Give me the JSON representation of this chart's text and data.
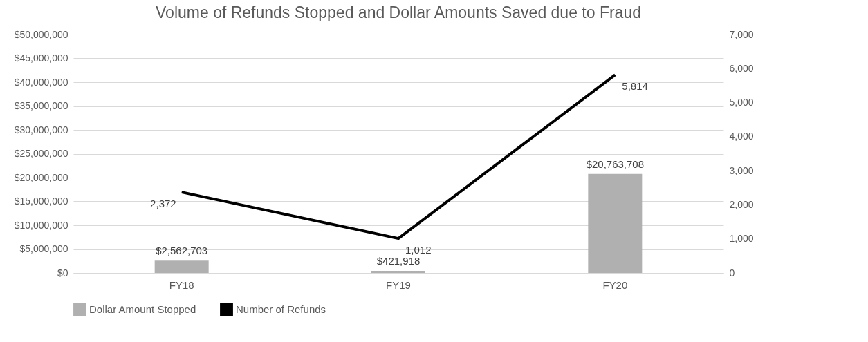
{
  "chart_data": {
    "type": "bar",
    "title": "Volume of Refunds Stopped and Dollar Amounts Saved due to Fraud",
    "categories": [
      "FY18",
      "FY19",
      "FY20"
    ],
    "series": [
      {
        "name": "Dollar Amount Stopped",
        "color": "#b0b0b0",
        "values": [
          2562703,
          421918,
          20763708
        ],
        "value_labels": [
          "$2,562,703",
          "$421,918",
          "$20,763,708"
        ]
      },
      {
        "name": "Number of Refunds",
        "type": "line",
        "axis": "y2",
        "color": "#000000",
        "values": [
          2372,
          1012,
          5814
        ],
        "value_labels": [
          "2,372",
          "1,012",
          "5,814"
        ]
      }
    ],
    "ylim": [
      0,
      50000000
    ],
    "yticks": [
      {
        "value": 0,
        "label": "$0"
      },
      {
        "value": 5000000,
        "label": "$5,000,000"
      },
      {
        "value": 10000000,
        "label": "$10,000,000"
      },
      {
        "value": 15000000,
        "label": "$15,000,000"
      },
      {
        "value": 20000000,
        "label": "$20,000,000"
      },
      {
        "value": 25000000,
        "label": "$25,000,000"
      },
      {
        "value": 30000000,
        "label": "$30,000,000"
      },
      {
        "value": 35000000,
        "label": "$35,000,000"
      },
      {
        "value": 40000000,
        "label": "$40,000,000"
      },
      {
        "value": 45000000,
        "label": "$45,000,000"
      },
      {
        "value": 50000000,
        "label": "$50,000,000"
      }
    ],
    "y2lim": [
      0,
      7000
    ],
    "y2ticks": [
      0,
      {
        "value": 1000,
        "label": "1,000"
      },
      {
        "value": 2000,
        "label": "2,000"
      },
      {
        "value": 3000,
        "label": "3,000"
      },
      {
        "value": 4000,
        "label": "4,000"
      },
      {
        "value": 5000,
        "label": "5,000"
      },
      {
        "value": 6000,
        "label": "6,000"
      },
      {
        "value": 7000,
        "label": "7,000"
      }
    ],
    "grid": "y",
    "legend": "bottom",
    "line_style": "solid",
    "marker": "none"
  }
}
